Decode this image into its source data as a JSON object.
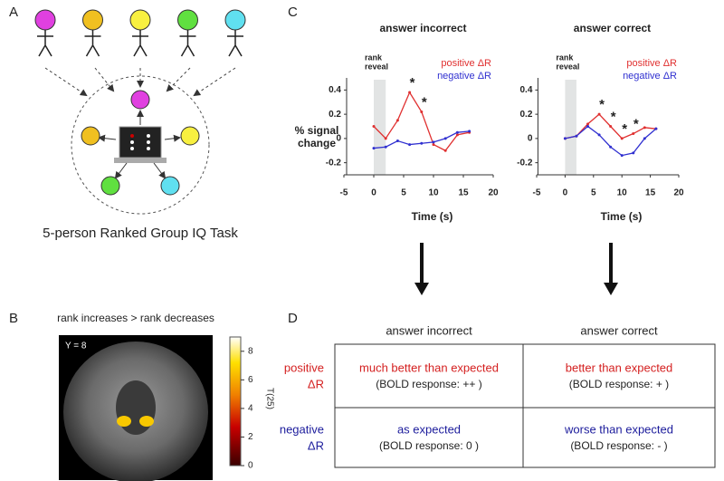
{
  "panels": {
    "a": {
      "label": "A",
      "caption": "5-person Ranked Group IQ Task"
    },
    "b": {
      "label": "B",
      "title": "rank increases > rank decreases",
      "slice": "Y = 8",
      "colorbar_label": "T(25)",
      "colorbar_lim": [
        0,
        9
      ],
      "colorbar_ticks": [
        0,
        2,
        4,
        6,
        8
      ]
    },
    "c": {
      "label": "C"
    },
    "d": {
      "label": "D",
      "columns": [
        "answer incorrect",
        "answer correct"
      ],
      "rows": [
        {
          "name": [
            "positive",
            "ΔR"
          ],
          "color": "#d42020",
          "cells": [
            {
              "main": "much better than expected",
              "note": "(BOLD response: ++ )"
            },
            {
              "main": "better than expected",
              "note": "(BOLD response: + )"
            }
          ]
        },
        {
          "name": [
            "negative",
            "ΔR"
          ],
          "color": "#1c1c9c",
          "cells": [
            {
              "main": "as expected",
              "note": "(BOLD response: 0 )"
            },
            {
              "main": "worse than expected",
              "note": "(BOLD response: - )"
            }
          ]
        }
      ]
    }
  },
  "chart_data": [
    {
      "type": "line",
      "title": "answer incorrect",
      "xlabel": "Time (s)",
      "ylabel": [
        "% signal",
        "change"
      ],
      "annotation": [
        "rank",
        "reveal"
      ],
      "reveal_window": [
        0,
        2
      ],
      "x": [
        0,
        2,
        4,
        6,
        8,
        10,
        12,
        14,
        16
      ],
      "xlim": [
        -5,
        20
      ],
      "xticks": [
        -5,
        0,
        5,
        10,
        15,
        20
      ],
      "ylim": [
        -0.3,
        0.5
      ],
      "yticks": [
        -0.2,
        0,
        0.2,
        0.4
      ],
      "significance": [
        null,
        null,
        null,
        "*",
        "*",
        null,
        null,
        null,
        null
      ],
      "series": [
        {
          "name": "positive ΔR",
          "color": "#e03030",
          "values": [
            0.1,
            0.0,
            0.15,
            0.38,
            0.22,
            -0.05,
            -0.1,
            0.03,
            0.05
          ]
        },
        {
          "name": "negative ΔR",
          "color": "#3030d0",
          "values": [
            -0.08,
            -0.07,
            -0.02,
            -0.05,
            -0.04,
            -0.03,
            0.0,
            0.05,
            0.06
          ]
        }
      ]
    },
    {
      "type": "line",
      "title": "answer correct",
      "xlabel": "Time (s)",
      "annotation": [
        "rank",
        "reveal"
      ],
      "reveal_window": [
        0,
        2
      ],
      "x": [
        0,
        2,
        4,
        6,
        8,
        10,
        12,
        14,
        16
      ],
      "xlim": [
        -5,
        20
      ],
      "xticks": [
        -5,
        0,
        5,
        10,
        15,
        20
      ],
      "ylim": [
        -0.3,
        0.5
      ],
      "yticks": [
        -0.2,
        0,
        0.2,
        0.4
      ],
      "significance": [
        null,
        null,
        null,
        "*",
        "*",
        "*",
        "*",
        null,
        null
      ],
      "series": [
        {
          "name": "positive ΔR",
          "color": "#e03030",
          "values": [
            0.0,
            0.02,
            0.12,
            0.2,
            0.1,
            0.0,
            0.04,
            0.09,
            0.08
          ]
        },
        {
          "name": "negative ΔR",
          "color": "#3030d0",
          "values": [
            0.0,
            0.02,
            0.1,
            0.03,
            -0.07,
            -0.14,
            -0.12,
            0.0,
            0.08
          ]
        }
      ]
    }
  ]
}
